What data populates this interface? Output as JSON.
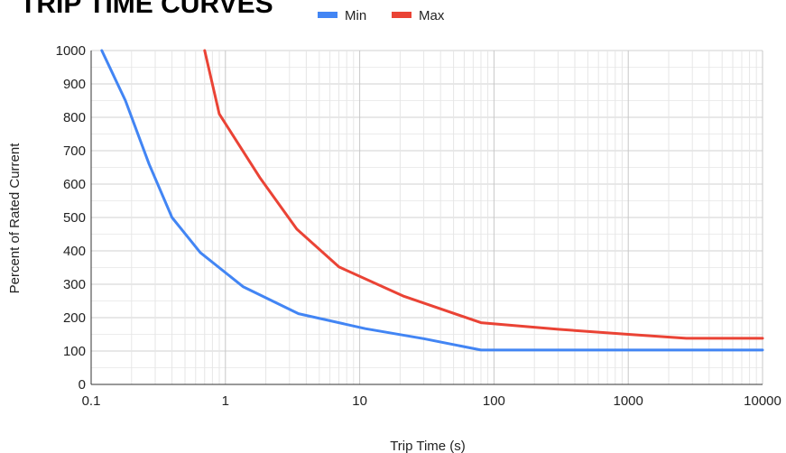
{
  "chart_data": {
    "type": "line",
    "title": "TRIP TIME CURVES",
    "xlabel": "Trip Time (s)",
    "ylabel": "Percent of Rated Current",
    "x_scale": "log",
    "xlim": [
      0.1,
      10000
    ],
    "ylim": [
      0,
      1000
    ],
    "x_ticks": [
      "0.1",
      "1",
      "10",
      "100",
      "1000",
      "10000"
    ],
    "y_ticks": [
      "0",
      "100",
      "200",
      "300",
      "400",
      "500",
      "600",
      "700",
      "800",
      "900",
      "1000"
    ],
    "grid": true,
    "legend_position": "top",
    "series": [
      {
        "name": "Min",
        "color": "#4285f4",
        "points": [
          [
            0.12,
            1000
          ],
          [
            0.18,
            850
          ],
          [
            0.27,
            660
          ],
          [
            0.4,
            500
          ],
          [
            0.65,
            395
          ],
          [
            1.35,
            293
          ],
          [
            3.5,
            212
          ],
          [
            11,
            167
          ],
          [
            30,
            137
          ],
          [
            80,
            103
          ],
          [
            10000,
            103
          ]
        ]
      },
      {
        "name": "Max",
        "color": "#ea4335",
        "points": [
          [
            0.7,
            1000
          ],
          [
            0.9,
            810
          ],
          [
            1.8,
            620
          ],
          [
            3.4,
            465
          ],
          [
            7,
            352
          ],
          [
            21,
            265
          ],
          [
            80,
            185
          ],
          [
            300,
            165
          ],
          [
            1000,
            150
          ],
          [
            2700,
            138
          ],
          [
            10000,
            138
          ]
        ]
      }
    ]
  }
}
